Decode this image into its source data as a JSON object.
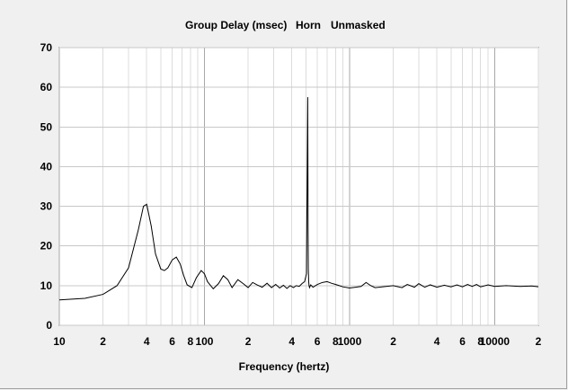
{
  "chart_data": {
    "type": "line",
    "title": "Group Delay (msec)",
    "subtitle_parts": [
      "Horn",
      "Unmasked"
    ],
    "xlabel": "Frequency (hertz)",
    "ylabel": "",
    "x_scale": "log",
    "xlim": [
      10,
      20000
    ],
    "ylim": [
      0,
      70
    ],
    "y_ticks": [
      0,
      10,
      20,
      30,
      40,
      50,
      60,
      70
    ],
    "x_ticks": [
      {
        "value": 10,
        "label": "10"
      },
      {
        "value": 20,
        "label": "2"
      },
      {
        "value": 40,
        "label": "4"
      },
      {
        "value": 60,
        "label": "6"
      },
      {
        "value": 80,
        "label": "8"
      },
      {
        "value": 100,
        "label": "100"
      },
      {
        "value": 200,
        "label": "2"
      },
      {
        "value": 400,
        "label": "4"
      },
      {
        "value": 600,
        "label": "6"
      },
      {
        "value": 800,
        "label": "8"
      },
      {
        "value": 1000,
        "label": "1000"
      },
      {
        "value": 2000,
        "label": "2"
      },
      {
        "value": 4000,
        "label": "4"
      },
      {
        "value": 6000,
        "label": "6"
      },
      {
        "value": 8000,
        "label": "8"
      },
      {
        "value": 10000,
        "label": "10000"
      },
      {
        "value": 20000,
        "label": "2"
      }
    ],
    "grid": true,
    "line_color": "#000000",
    "series": [
      {
        "x": [
          10,
          15,
          20,
          25,
          30,
          35,
          38,
          40,
          43,
          46,
          50,
          53,
          56,
          60,
          64,
          68,
          72,
          76,
          82,
          88,
          95,
          100,
          105,
          115,
          125,
          135,
          145,
          155,
          170,
          185,
          200,
          215,
          230,
          250,
          270,
          290,
          310,
          330,
          350,
          370,
          390,
          410,
          430,
          450,
          470,
          490,
          505,
          510,
          515,
          518,
          520,
          523,
          526,
          530,
          540,
          560,
          600,
          650,
          700,
          750,
          800,
          850,
          900,
          1000,
          1100,
          1200,
          1300,
          1400,
          1500,
          1700,
          2000,
          2300,
          2500,
          2800,
          3000,
          3300,
          3600,
          4000,
          4500,
          5000,
          5500,
          6000,
          6500,
          7000,
          7500,
          8000,
          9000,
          10000,
          12000,
          15000,
          18000,
          20000
        ],
        "y": [
          6.4,
          6.8,
          7.8,
          10.0,
          14.5,
          24.0,
          30.0,
          30.5,
          25.0,
          18.0,
          14.2,
          13.8,
          14.5,
          16.5,
          17.2,
          15.5,
          12.5,
          10.2,
          9.5,
          12.0,
          13.8,
          13.0,
          11.0,
          9.2,
          10.5,
          12.5,
          11.5,
          9.5,
          11.5,
          10.5,
          9.5,
          10.8,
          10.2,
          9.6,
          10.6,
          9.5,
          10.3,
          9.4,
          10.1,
          9.3,
          10.0,
          9.5,
          10.0,
          9.8,
          10.5,
          11.0,
          13.0,
          35.0,
          57.5,
          24.0,
          14.0,
          11.0,
          10.0,
          9.5,
          10.2,
          9.6,
          10.3,
          10.8,
          11.0,
          10.6,
          10.3,
          10.0,
          9.7,
          9.4,
          9.6,
          9.8,
          10.8,
          10.0,
          9.5,
          9.7,
          10.0,
          9.5,
          10.3,
          9.6,
          10.5,
          9.6,
          10.2,
          9.6,
          10.1,
          9.7,
          10.2,
          9.7,
          10.3,
          9.8,
          10.3,
          9.7,
          10.2,
          9.8,
          10.0,
          9.8,
          9.9,
          9.7
        ]
      }
    ]
  }
}
